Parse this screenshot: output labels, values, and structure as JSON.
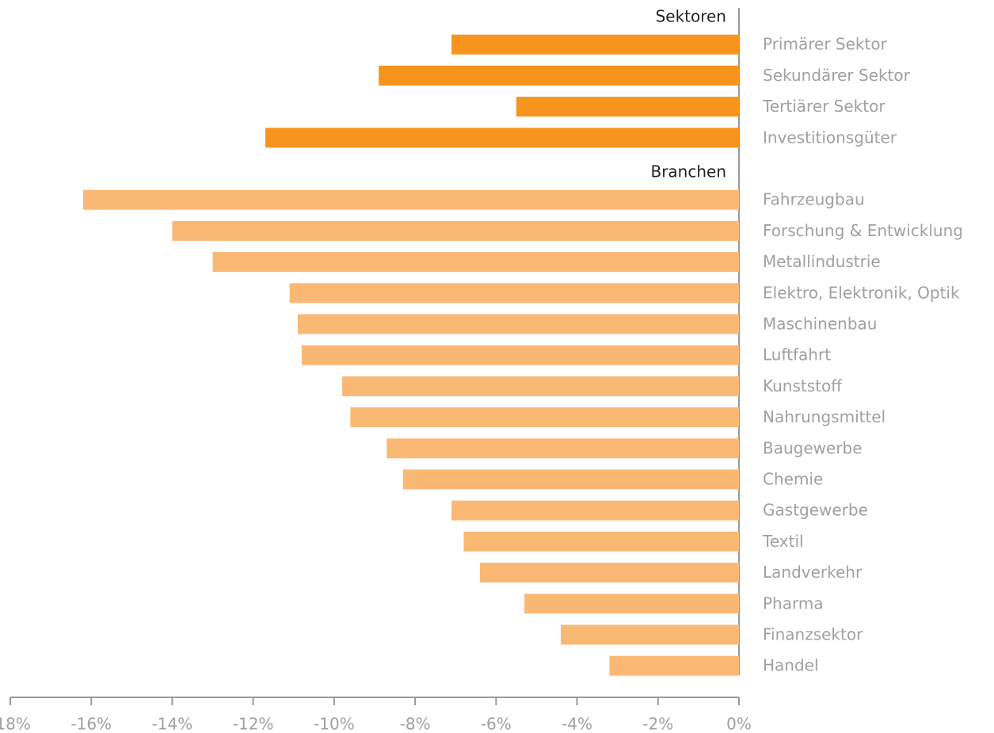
{
  "chart_data": {
    "type": "bar",
    "orientation": "horizontal",
    "groups": [
      {
        "name": "Sektoren",
        "color": "#f7941d",
        "categories": [
          "Primärer Sektor",
          "Sekundärer Sektor",
          "Tertiärer Sektor",
          "Investitionsgüter"
        ],
        "values": [
          -7.1,
          -8.9,
          -5.5,
          -11.7
        ]
      },
      {
        "name": "Branchen",
        "color": "#fab875",
        "categories": [
          "Fahrzeugbau",
          "Forschung & Entwicklung",
          "Metallindustrie",
          "Elektro, Elektronik, Optik",
          "Maschinenbau",
          "Luftfahrt",
          "Kunststoff",
          "Nahrungsmittel",
          "Baugewerbe",
          "Chemie",
          "Gastgewerbe",
          "Textil",
          "Landverkehr",
          "Pharma",
          "Finanzsektor",
          "Handel"
        ],
        "values": [
          -16.2,
          -14.0,
          -13.0,
          -11.1,
          -10.9,
          -10.8,
          -9.8,
          -9.6,
          -8.7,
          -8.3,
          -7.1,
          -6.8,
          -6.4,
          -5.3,
          -4.4,
          -3.2
        ]
      }
    ],
    "xlim": [
      -18,
      0
    ],
    "xticks": [
      {
        "value": -18,
        "label": "-18%"
      },
      {
        "value": -16,
        "label": "-16%"
      },
      {
        "value": -14,
        "label": "-14%"
      },
      {
        "value": -12,
        "label": "-12%"
      },
      {
        "value": -10,
        "label": "-10%"
      },
      {
        "value": -8,
        "label": "-8%"
      },
      {
        "value": -6,
        "label": "-6%"
      },
      {
        "value": -4,
        "label": "-4%"
      },
      {
        "value": -2,
        "label": "-2%"
      },
      {
        "value": 0,
        "label": "0%"
      }
    ]
  }
}
